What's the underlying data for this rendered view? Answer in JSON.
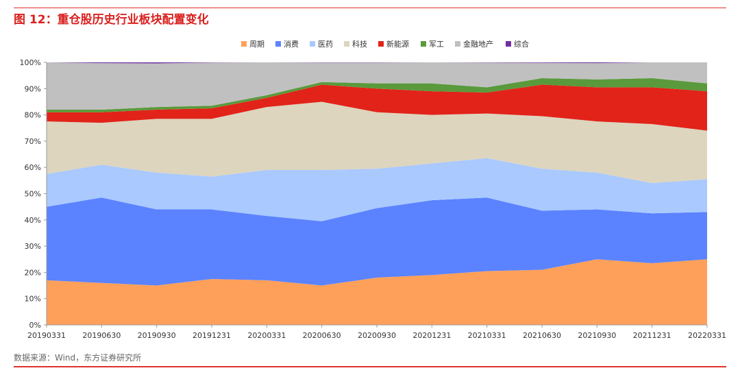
{
  "title": "图 12：重仓股历史行业板块配置变化",
  "source": "数据来源：Wind，东方证券研究所",
  "colors": {
    "accent": "#e0312a"
  },
  "chart_data": {
    "type": "area",
    "stacked": true,
    "percent": true,
    "categories": [
      "20190331",
      "20190630",
      "20190930",
      "20191231",
      "20200331",
      "20200630",
      "20200930",
      "20201231",
      "20210331",
      "20210630",
      "20210930",
      "20211231",
      "20220331"
    ],
    "ylim": [
      0,
      100
    ],
    "yticks": [
      "0%",
      "10%",
      "20%",
      "30%",
      "40%",
      "50%",
      "60%",
      "70%",
      "80%",
      "90%",
      "100%"
    ],
    "legend_position": "top",
    "grid": false,
    "series": [
      {
        "name": "周期",
        "color": "#ffa05a",
        "values": [
          17,
          16,
          15,
          17.5,
          17,
          15,
          18,
          19,
          20.5,
          21,
          25,
          23.5,
          25
        ]
      },
      {
        "name": "消费",
        "color": "#5b83ff",
        "values": [
          28,
          32.5,
          29,
          26.5,
          24.5,
          24.5,
          26.5,
          28.5,
          28,
          22.5,
          19,
          19,
          18
        ]
      },
      {
        "name": "医药",
        "color": "#a9c9ff",
        "values": [
          12.5,
          12.5,
          14,
          12.5,
          17.5,
          19.5,
          15,
          14,
          15,
          16,
          14,
          11.5,
          12.5
        ]
      },
      {
        "name": "科技",
        "color": "#ddd5be",
        "values": [
          20,
          16,
          20.5,
          22,
          24,
          26,
          21.5,
          18.5,
          17,
          20,
          19.5,
          22.5,
          18.5
        ]
      },
      {
        "name": "新能源",
        "color": "#e2231a",
        "values": [
          3.5,
          4,
          3.5,
          4,
          3.5,
          6.5,
          9,
          9,
          8,
          12,
          13,
          14,
          15
        ]
      },
      {
        "name": "军工",
        "color": "#5a9a3c",
        "values": [
          1,
          1,
          1,
          1,
          1,
          1,
          2,
          3,
          2,
          2.5,
          3,
          3.5,
          3
        ]
      },
      {
        "name": "金融地产",
        "color": "#c0c0c0",
        "values": [
          18,
          17.7,
          16.6,
          16.4,
          12.5,
          7.4,
          7.9,
          8,
          9.4,
          5.8,
          6.2,
          6,
          8
        ]
      },
      {
        "name": "综合",
        "color": "#7030a0",
        "values": [
          0,
          0.3,
          0.4,
          0.1,
          0,
          0.1,
          0.1,
          0,
          0.1,
          0.2,
          0.3,
          0,
          0
        ]
      }
    ]
  }
}
